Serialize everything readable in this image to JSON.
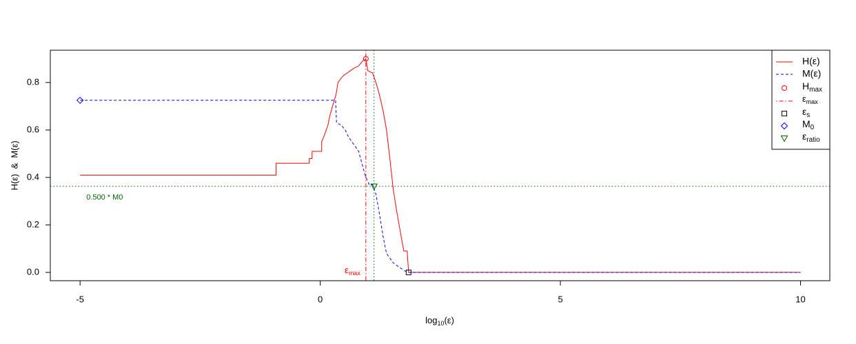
{
  "chart_data": {
    "type": "line",
    "ylabel": "H(ε)  &  M(ε)",
    "xlabel": {
      "text": "log",
      "sub": "10",
      "suffix": "(ε)"
    },
    "xlim": [
      -5.62,
      10.61
    ],
    "ylim": [
      -0.035,
      0.936
    ],
    "xticks": [
      -5,
      0,
      5,
      10
    ],
    "yticks": [
      {
        "value": 0,
        "label": "0.0"
      },
      0.2,
      0.4,
      0.6,
      0.8
    ],
    "series": [
      {
        "name": "H(ε)",
        "color": "#ff0000",
        "dash": "solid",
        "x": [
          -5,
          -0.92,
          -0.92,
          -0.23,
          -0.23,
          -0.17,
          -0.17,
          0.03,
          0.03,
          0.09,
          0.16,
          0.2,
          0.27,
          0.33,
          0.37,
          0.44,
          0.49,
          0.56,
          0.63,
          0.7,
          0.8,
          0.88,
          0.95,
          0.99,
          1.09,
          1.16,
          1.23,
          1.31,
          1.38,
          1.45,
          1.52,
          1.59,
          1.66,
          1.74,
          1.81,
          1.84,
          10
        ],
        "values": [
          0.41,
          0.41,
          0.46,
          0.46,
          0.48,
          0.48,
          0.51,
          0.51,
          0.55,
          0.58,
          0.62,
          0.66,
          0.71,
          0.75,
          0.8,
          0.82,
          0.83,
          0.84,
          0.85,
          0.86,
          0.87,
          0.89,
          0.9,
          0.85,
          0.84,
          0.8,
          0.75,
          0.68,
          0.6,
          0.48,
          0.35,
          0.26,
          0.18,
          0.09,
          0.09,
          0,
          0
        ]
      },
      {
        "name": "M(ε)",
        "color": "#0000ff",
        "dash": "dashed",
        "x": [
          -5,
          0.32,
          0.34,
          0.44,
          0.52,
          0.59,
          0.66,
          0.73,
          0.8,
          0.88,
          0.95,
          1.02,
          1.09,
          1.16,
          1.23,
          1.31,
          1.38,
          1.45,
          1.52,
          1.66,
          1.81,
          10
        ],
        "values": [
          0.725,
          0.725,
          0.63,
          0.62,
          0.6,
          0.57,
          0.55,
          0.53,
          0.51,
          0.45,
          0.4,
          0.37,
          0.37,
          0.33,
          0.25,
          0.15,
          0.08,
          0.06,
          0.04,
          0.02,
          0,
          0
        ]
      }
    ],
    "points": [
      {
        "name": "H",
        "sub": "max",
        "shape": "circle",
        "color": "#ff0000",
        "x": 0.95,
        "y": 0.9
      },
      {
        "name": "ε",
        "sub": "s",
        "shape": "square",
        "color": "#000000",
        "x": 1.84,
        "y": 0
      },
      {
        "name": "M",
        "sub": "0",
        "shape": "diamond",
        "color": "#0000ff",
        "x": -5,
        "y": 0.725
      },
      {
        "name": "ε",
        "sub": "ratio",
        "shape": "triangle",
        "color": "#006400",
        "x": 1.12,
        "y": 0.3625
      }
    ],
    "vlines": [
      {
        "name": "ε",
        "sub": "max",
        "color": "#ff0000",
        "dash": "dotdash",
        "x": 0.95
      },
      {
        "color": "#006400",
        "dash": "dotted",
        "x": 1.12
      }
    ],
    "hlines": [
      {
        "label": "0.500 * M0",
        "color": "#006400",
        "dash": "dotted",
        "y": 0.3625
      }
    ]
  }
}
